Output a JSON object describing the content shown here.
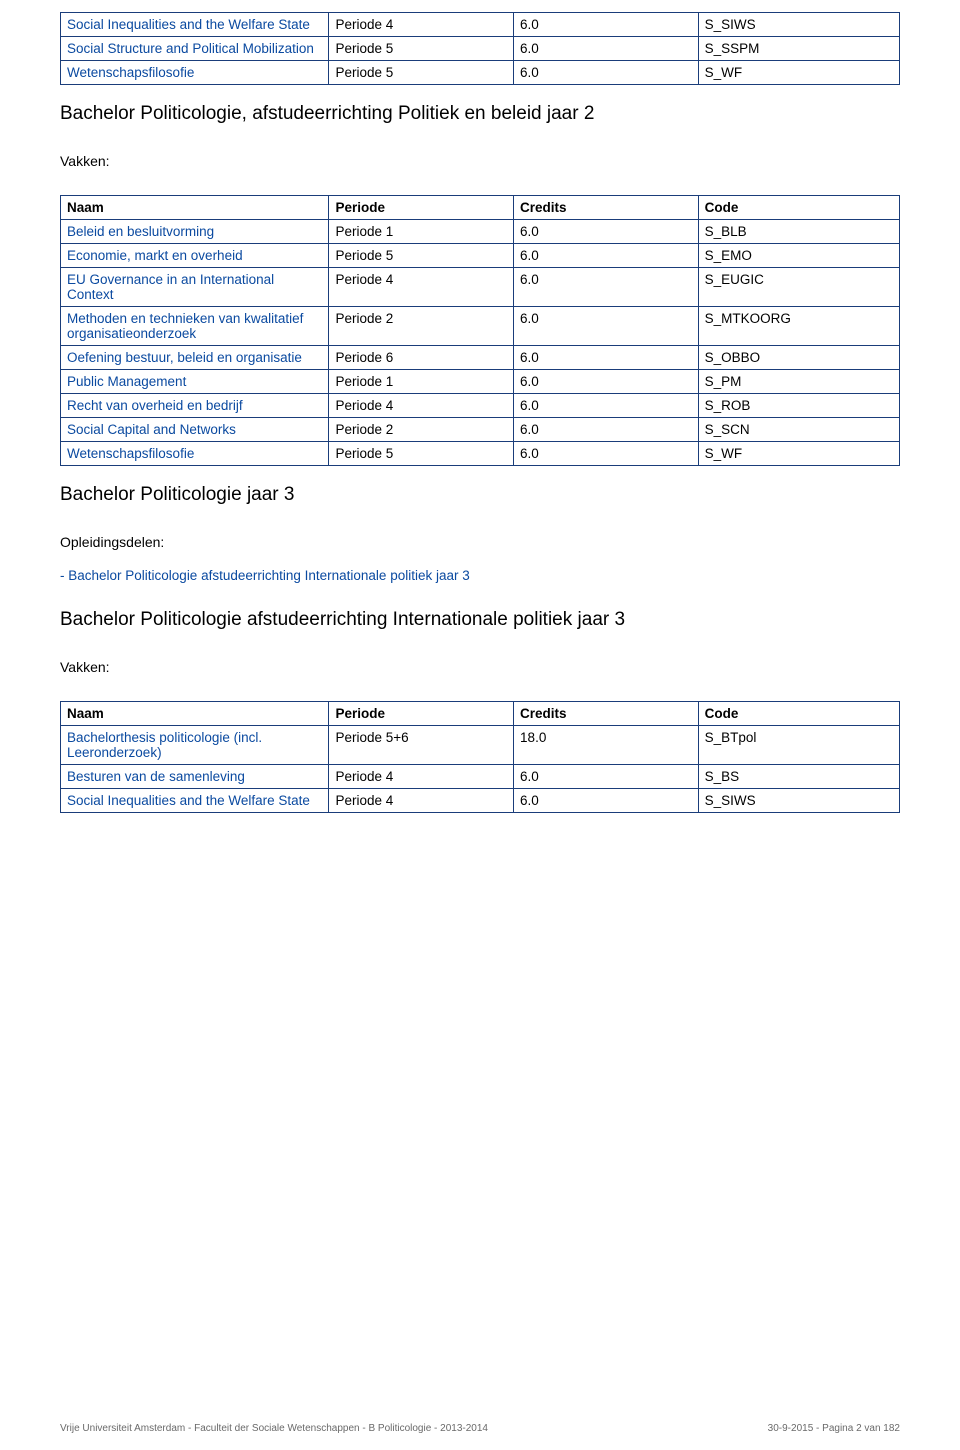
{
  "colors": {
    "border": "#1a3d7a",
    "link": "#0b4aa0",
    "text": "#000000",
    "footer": "#6a6a6a",
    "background": "#ffffff"
  },
  "typography": {
    "body_font": "Arial",
    "cell_fontsize": 13.5,
    "heading_fontsize": 19,
    "footer_fontsize": 10
  },
  "table1": {
    "rows": [
      {
        "naam": "Social Inequalities and the Welfare State",
        "periode": "Periode 4",
        "credits": "6.0",
        "code": "S_SIWS"
      },
      {
        "naam": "Social Structure and Political Mobilization",
        "periode": "Periode 5",
        "credits": "6.0",
        "code": "S_SSPM"
      },
      {
        "naam": "Wetenschapsfilosofie",
        "periode": "Periode 5",
        "credits": "6.0",
        "code": "S_WF"
      }
    ]
  },
  "heading1": "Bachelor Politicologie, afstudeerrichting Politiek en beleid jaar 2",
  "vakken_label": "Vakken:",
  "table_headers": {
    "naam": "Naam",
    "periode": "Periode",
    "credits": "Credits",
    "code": "Code"
  },
  "table2": {
    "rows": [
      {
        "naam": "Beleid en besluitvorming",
        "periode": "Periode 1",
        "credits": "6.0",
        "code": "S_BLB"
      },
      {
        "naam": "Economie, markt en overheid",
        "periode": "Periode 5",
        "credits": "6.0",
        "code": "S_EMO"
      },
      {
        "naam": "EU Governance in an International Context",
        "periode": "Periode 4",
        "credits": "6.0",
        "code": "S_EUGIC"
      },
      {
        "naam": "Methoden en technieken van kwalitatief organisatieonderzoek",
        "periode": "Periode 2",
        "credits": "6.0",
        "code": "S_MTKOORG"
      },
      {
        "naam": "Oefening bestuur, beleid en organisatie",
        "periode": "Periode 6",
        "credits": "6.0",
        "code": "S_OBBO"
      },
      {
        "naam": "Public Management",
        "periode": "Periode 1",
        "credits": "6.0",
        "code": "S_PM"
      },
      {
        "naam": "Recht van overheid en bedrijf",
        "periode": "Periode 4",
        "credits": "6.0",
        "code": "S_ROB"
      },
      {
        "naam": "Social Capital and Networks",
        "periode": "Periode 2",
        "credits": "6.0",
        "code": "S_SCN"
      },
      {
        "naam": "Wetenschapsfilosofie",
        "periode": "Periode 5",
        "credits": "6.0",
        "code": "S_WF"
      }
    ]
  },
  "heading2": "Bachelor Politicologie jaar 3",
  "opleidingsdelen_label": "Opleidingsdelen:",
  "opl_item": "-  Bachelor Politicologie afstudeerrichting Internationale politiek jaar 3",
  "heading3": "Bachelor Politicologie afstudeerrichting Internationale politiek jaar 3",
  "table3": {
    "rows": [
      {
        "naam": "Bachelorthesis politicologie (incl. Leeronderzoek)",
        "periode": "Periode 5+6",
        "credits": "18.0",
        "code": "S_BTpol"
      },
      {
        "naam": "Besturen van de samenleving",
        "periode": "Periode 4",
        "credits": "6.0",
        "code": "S_BS"
      },
      {
        "naam": "Social Inequalities and the Welfare State",
        "periode": "Periode 4",
        "credits": "6.0",
        "code": "S_SIWS"
      }
    ]
  },
  "footer": {
    "left": "Vrije Universiteit Amsterdam - Faculteit der Sociale Wetenschappen - B Politicologie - 2013-2014",
    "right": "30-9-2015 - Pagina 2 van 182"
  }
}
